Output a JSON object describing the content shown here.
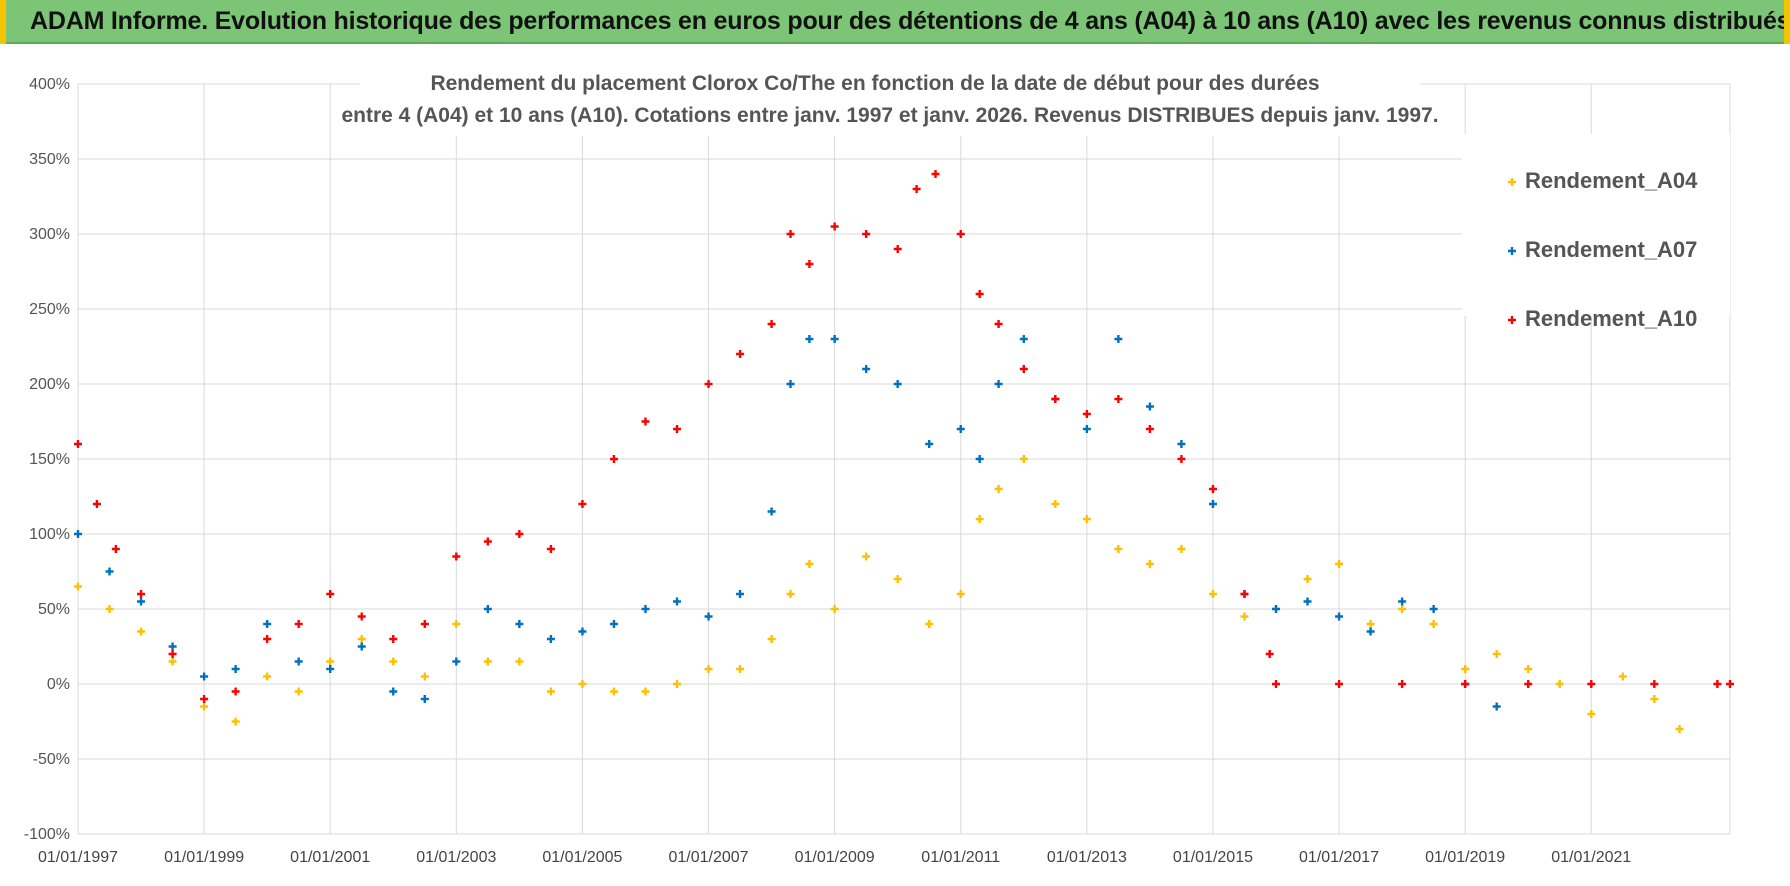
{
  "banner": {
    "title": "ADAM Informe. Evolution historique des performances en euros pour des détentions de 4 ans (A04) à 10 ans (A10) avec les revenus connus distribués"
  },
  "colors": {
    "banner_bg": "#7cc576",
    "A04": "#ffc000",
    "A07": "#0070c0",
    "A10": "#ff0000",
    "grid": "#d9d9d9"
  },
  "chart_data": {
    "type": "scatter",
    "title": [
      "Rendement du placement Clorox Co/The en fonction de la date de début pour des durées",
      "entre 4 (A04) et 10 ans (A10).  Cotations entre janv. 1997 et janv. 2026. Revenus DISTRIBUES  depuis janv. 1997."
    ],
    "xlabel": "",
    "ylabel": "",
    "xlim": [
      1997.0,
      2023.2
    ],
    "ylim": [
      -100,
      400
    ],
    "grid": true,
    "legend_position": "right",
    "y_ticks": [
      "400%",
      "350%",
      "300%",
      "250%",
      "200%",
      "150%",
      "100%",
      "50%",
      "0%",
      "-50%",
      "-100%"
    ],
    "x_ticks": [
      "01/01/1997",
      "01/01/1999",
      "01/01/2001",
      "01/01/2003",
      "01/01/2005",
      "01/01/2007",
      "01/01/2009",
      "01/01/2011",
      "01/01/2013",
      "01/01/2015",
      "01/01/2017",
      "01/01/2019",
      "01/01/2021"
    ],
    "series": [
      {
        "name": "Rendement_A04",
        "x": [
          1997.0,
          1997.5,
          1998.0,
          1998.5,
          1999.0,
          1999.5,
          2000.0,
          2000.5,
          2001.0,
          2001.5,
          2002.0,
          2002.5,
          2003.0,
          2003.5,
          2004.0,
          2004.5,
          2005.0,
          2005.5,
          2006.0,
          2006.5,
          2007.0,
          2007.5,
          2008.0,
          2008.3,
          2008.6,
          2009.0,
          2009.5,
          2010.0,
          2010.5,
          2011.0,
          2011.3,
          2011.6,
          2012.0,
          2012.5,
          2013.0,
          2013.5,
          2014.0,
          2014.5,
          2015.0,
          2015.5,
          2016.0,
          2016.5,
          2017.0,
          2017.5,
          2018.0,
          2018.5,
          2019.0,
          2019.5,
          2020.0,
          2020.5,
          2021.0,
          2021.5,
          2022.0,
          2022.4
        ],
        "y": [
          65,
          50,
          35,
          15,
          -15,
          -25,
          5,
          -5,
          15,
          30,
          15,
          5,
          40,
          15,
          15,
          -5,
          0,
          -5,
          -5,
          0,
          10,
          10,
          30,
          60,
          80,
          50,
          85,
          70,
          40,
          60,
          110,
          130,
          150,
          120,
          110,
          90,
          80,
          90,
          60,
          45,
          50,
          70,
          80,
          40,
          50,
          40,
          10,
          20,
          10,
          0,
          -20,
          5,
          -10,
          -30
        ]
      },
      {
        "name": "Rendement_A07",
        "x": [
          1997.0,
          1997.5,
          1998.0,
          1998.5,
          1999.0,
          1999.5,
          2000.0,
          2000.5,
          2001.0,
          2001.5,
          2002.0,
          2002.5,
          2003.0,
          2003.5,
          2004.0,
          2004.5,
          2005.0,
          2005.5,
          2006.0,
          2006.5,
          2007.0,
          2007.5,
          2008.0,
          2008.3,
          2008.6,
          2009.0,
          2009.5,
          2010.0,
          2010.5,
          2011.0,
          2011.3,
          2011.6,
          2012.0,
          2012.5,
          2013.0,
          2013.5,
          2014.0,
          2014.5,
          2015.0,
          2015.5,
          2016.0,
          2016.5,
          2017.0,
          2017.5,
          2018.0,
          2018.5,
          2019.0,
          2019.5
        ],
        "y": [
          100,
          75,
          55,
          25,
          5,
          10,
          40,
          15,
          10,
          25,
          -5,
          -10,
          15,
          50,
          40,
          30,
          35,
          40,
          50,
          55,
          45,
          60,
          115,
          200,
          230,
          230,
          210,
          200,
          160,
          170,
          150,
          200,
          230,
          190,
          170,
          230,
          185,
          160,
          120,
          60,
          50,
          55,
          45,
          35,
          55,
          50,
          0,
          -15
        ]
      },
      {
        "name": "Rendement_A10",
        "x": [
          1997.0,
          1997.3,
          1997.6,
          1998.0,
          1998.5,
          1999.0,
          1999.5,
          2000.0,
          2000.5,
          2001.0,
          2001.5,
          2002.0,
          2002.5,
          2003.0,
          2003.5,
          2004.0,
          2004.5,
          2005.0,
          2005.5,
          2006.0,
          2006.5,
          2007.0,
          2007.5,
          2008.0,
          2008.3,
          2008.6,
          2009.0,
          2009.5,
          2010.0,
          2010.3,
          2010.6,
          2011.0,
          2011.3,
          2011.6,
          2012.0,
          2012.5,
          2013.0,
          2013.5,
          2014.0,
          2014.5,
          2015.0,
          2015.5,
          2015.9,
          2016.0,
          2017.0,
          2018.0,
          2019.0,
          2020.0,
          2021.0,
          2022.0,
          2023.0,
          2023.2
        ],
        "y": [
          160,
          120,
          90,
          60,
          20,
          -10,
          -5,
          30,
          40,
          60,
          45,
          30,
          40,
          85,
          95,
          100,
          90,
          120,
          150,
          175,
          170,
          200,
          220,
          240,
          300,
          280,
          305,
          300,
          290,
          330,
          340,
          300,
          260,
          240,
          210,
          190,
          180,
          190,
          170,
          150,
          130,
          60,
          20,
          0,
          0,
          0,
          0,
          0,
          0,
          0,
          0,
          0
        ]
      }
    ]
  }
}
